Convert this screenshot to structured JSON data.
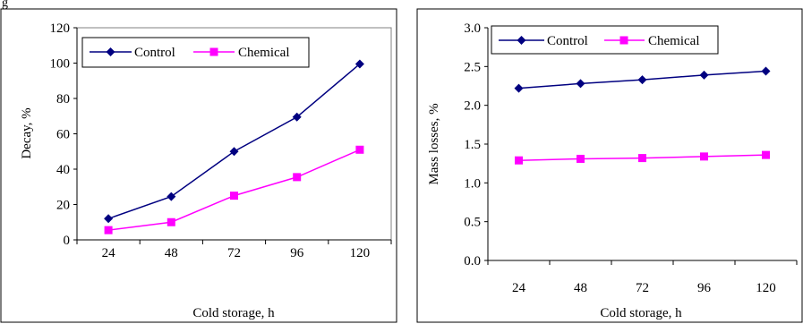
{
  "chart_data": [
    {
      "type": "line",
      "categories": [
        "24",
        "48",
        "72",
        "96",
        "120"
      ],
      "series": [
        {
          "name": "Control",
          "values": [
            12,
            24.5,
            50,
            69.5,
            99.5
          ],
          "color": "#000080",
          "marker": "diamond"
        },
        {
          "name": "Chemical",
          "values": [
            5.5,
            10,
            25,
            35.5,
            51
          ],
          "color": "#ff00ff",
          "marker": "square"
        }
      ],
      "xlabel": "Cold storage, h",
      "ylabel": "Decay, %",
      "ylim": [
        0,
        120
      ],
      "yticks": [
        "0",
        "20",
        "40",
        "60",
        "80",
        "100",
        "120"
      ],
      "legend": "top-left",
      "grid": false
    },
    {
      "type": "line",
      "categories": [
        "24",
        "48",
        "72",
        "96",
        "120"
      ],
      "series": [
        {
          "name": "Control",
          "values": [
            2.22,
            2.28,
            2.33,
            2.39,
            2.44
          ],
          "color": "#000080",
          "marker": "diamond"
        },
        {
          "name": "Chemical",
          "values": [
            1.29,
            1.31,
            1.32,
            1.34,
            1.36
          ],
          "color": "#ff00ff",
          "marker": "square"
        }
      ],
      "xlabel": "Cold storage, h",
      "ylabel": "Mass losses, %",
      "ylim": [
        0,
        3.0
      ],
      "yticks": [
        "0.0",
        "0.5",
        "1.0",
        "1.5",
        "2.0",
        "2.5",
        "3.0"
      ],
      "legend": "top-left",
      "grid": false
    }
  ]
}
